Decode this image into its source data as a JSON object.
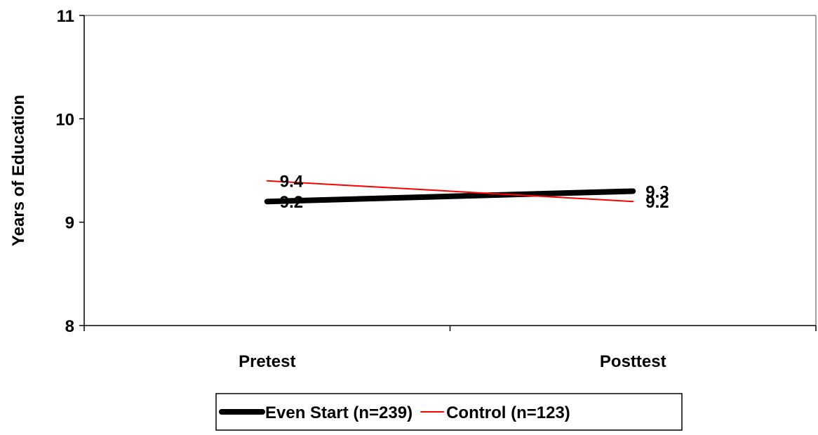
{
  "chart_data": {
    "type": "line",
    "categories": [
      "Pretest",
      "Posttest"
    ],
    "series": [
      {
        "name": "Even Start (n=239)",
        "values": [
          9.2,
          9.3
        ],
        "labels": [
          "9.2",
          "9.3"
        ],
        "color": "#000000",
        "emphasis": "thick"
      },
      {
        "name": "Control (n=123)",
        "values": [
          9.4,
          9.2
        ],
        "labels": [
          "9.4",
          "9.2"
        ],
        "color": "#ff0000",
        "emphasis": "thin"
      }
    ],
    "title": "",
    "xlabel": "",
    "ylabel": "Years of Education",
    "ylim": [
      8,
      11
    ],
    "yticks": [
      8,
      9,
      10,
      11
    ],
    "ytick_labels": [
      "8",
      "9",
      "10",
      "11"
    ],
    "grid": false,
    "legend_position": "bottom"
  }
}
